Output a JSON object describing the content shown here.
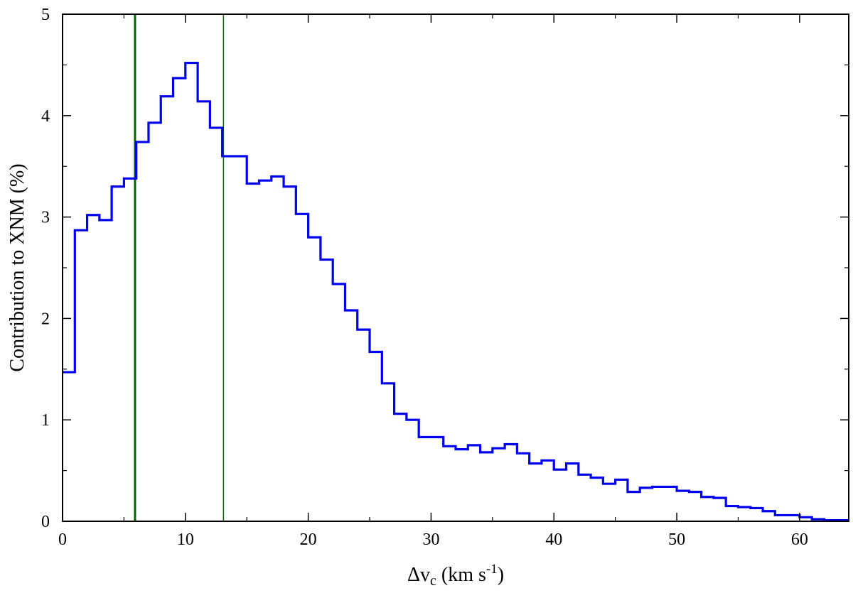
{
  "chart_data": {
    "type": "histogram-step",
    "xlabel_parts": {
      "prefix": "Δv",
      "sub": "c",
      "mid": " (km s",
      "sup": "-1",
      "suffix": ")"
    },
    "ylabel": "Contribution to XNM (%)",
    "xlim": [
      0,
      64
    ],
    "ylim": [
      0,
      5
    ],
    "xticks": [
      0,
      10,
      20,
      30,
      40,
      50,
      60
    ],
    "yticks": [
      0,
      1,
      2,
      3,
      4,
      5
    ],
    "bin_start": 0,
    "bin_width": 1,
    "series": [
      {
        "color": "#0000ee",
        "values": [
          1.47,
          2.87,
          3.02,
          2.97,
          3.3,
          3.38,
          3.74,
          3.93,
          4.19,
          4.37,
          4.52,
          4.14,
          3.88,
          3.6,
          3.6,
          3.33,
          3.36,
          3.4,
          3.3,
          3.03,
          2.8,
          2.58,
          2.34,
          2.08,
          1.89,
          1.67,
          1.36,
          1.06,
          1.0,
          0.83,
          0.83,
          0.74,
          0.71,
          0.75,
          0.68,
          0.72,
          0.76,
          0.67,
          0.57,
          0.6,
          0.51,
          0.57,
          0.46,
          0.43,
          0.37,
          0.41,
          0.29,
          0.33,
          0.34,
          0.34,
          0.3,
          0.29,
          0.24,
          0.23,
          0.15,
          0.14,
          0.13,
          0.1,
          0.06,
          0.06,
          0.04,
          0.02,
          0.01,
          0.01
        ]
      }
    ],
    "vlines": [
      {
        "x": 5.9,
        "color": "#006600",
        "width": 3
      },
      {
        "x": 13.1,
        "color": "#006600",
        "width": 1.5
      }
    ]
  }
}
